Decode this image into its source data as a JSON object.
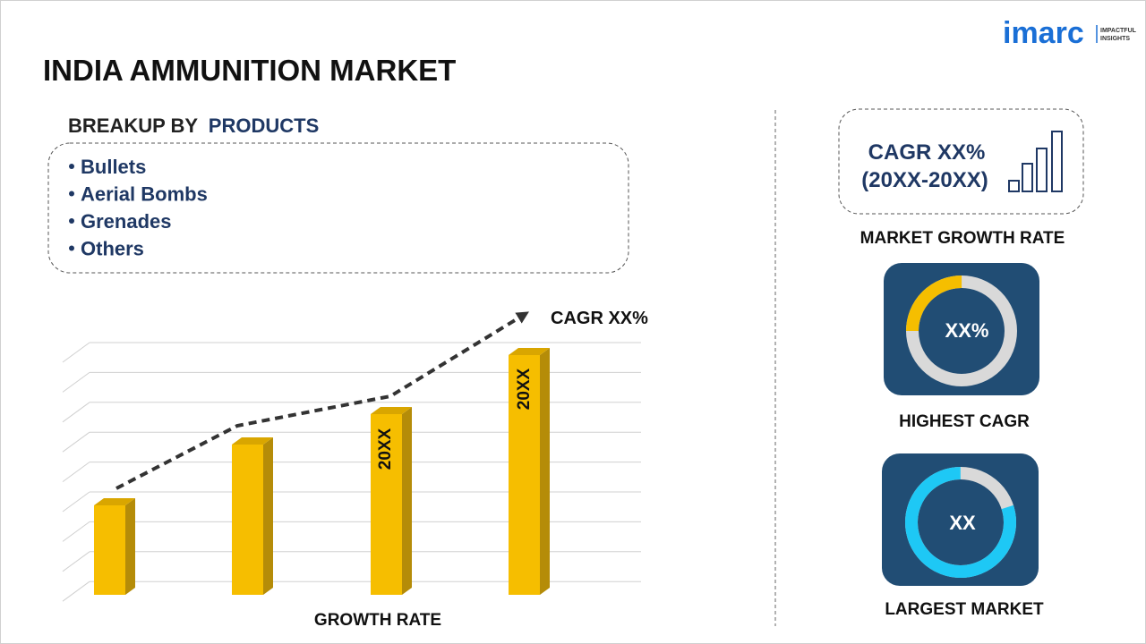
{
  "brand": {
    "name": "imarc",
    "tagline": [
      "IMPACTFUL",
      "INSIGHTS"
    ]
  },
  "title": "INDIA AMMUNITION MARKET",
  "breakup": {
    "heading_prefix": "BREAKUP BY",
    "heading_highlight": "PRODUCTS",
    "items": [
      "Bullets",
      "Aerial Bombs",
      "Grenades",
      "Others"
    ]
  },
  "growth_chart": {
    "cagr_label": "CAGR XX%",
    "bar_labels": [
      "20XX",
      "20XX"
    ],
    "axis_label": "GROWTH RATE"
  },
  "market_growth": {
    "cagr": "CAGR XX%",
    "period": "(20XX-20XX)",
    "caption": "MARKET GROWTH RATE"
  },
  "highest_cagr": {
    "value": "XX%",
    "caption": "HIGHEST CAGR"
  },
  "largest_market": {
    "value": "XX",
    "caption": "LARGEST MARKET"
  }
}
